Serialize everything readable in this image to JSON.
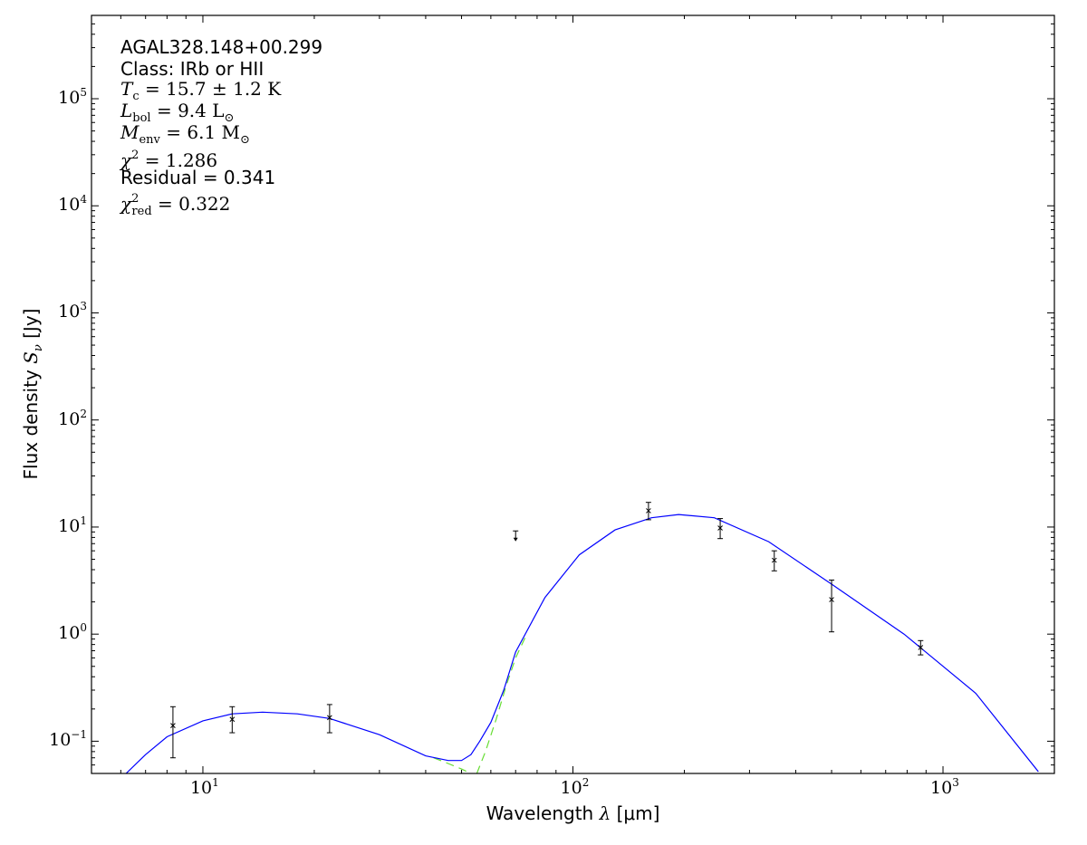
{
  "chart_data": {
    "type": "scatter",
    "xscale": "log",
    "yscale": "log",
    "xlim": [
      5,
      2000
    ],
    "ylim": [
      0.05,
      600000
    ],
    "xlabel": {
      "text": "Wavelength",
      "symbol": "λ",
      "unit": "[μm]"
    },
    "ylabel": {
      "text": "Flux density",
      "symbol": "S",
      "sub": "ν",
      "unit": "[Jy]"
    },
    "x_ticks": [
      {
        "base": "10",
        "exp": "1",
        "value": 10
      },
      {
        "base": "10",
        "exp": "2",
        "value": 100
      },
      {
        "base": "10",
        "exp": "3",
        "value": 1000
      }
    ],
    "y_ticks": [
      {
        "base": "10",
        "exp": "−1",
        "value": 0.1
      },
      {
        "base": "10",
        "exp": "0",
        "value": 1
      },
      {
        "base": "10",
        "exp": "1",
        "value": 10
      },
      {
        "base": "10",
        "exp": "2",
        "value": 100
      },
      {
        "base": "10",
        "exp": "3",
        "value": 1000
      },
      {
        "base": "10",
        "exp": "4",
        "value": 10000
      },
      {
        "base": "10",
        "exp": "5",
        "value": 100000
      }
    ],
    "grid": false,
    "colors": {
      "model_total": "#0000ff",
      "model_component": "#66dd33",
      "points": "#000000"
    },
    "annotations": {
      "source": "AGAL328.148+00.299",
      "class": "Class: IRb or HII",
      "tc": {
        "sym": "T",
        "sub": "c",
        "rest": " = 15.7 ± 1.2 K"
      },
      "lbol": {
        "sym": "L",
        "sub": "bol",
        "rest": " = 9.4 L",
        "tail": "⊙"
      },
      "menv": {
        "sym": "M",
        "sub": "env",
        "rest": " = 6.1 M",
        "tail": "⊙"
      },
      "chi2": {
        "sym": "χ",
        "sup": "2",
        "rest": " = 1.286"
      },
      "residual": "Residual = 0.341",
      "chi2red": {
        "sym": "χ",
        "sup": "2",
        "sub": "red",
        "rest": " = 0.322"
      }
    },
    "points": [
      {
        "x": 8.3,
        "y": 0.14,
        "ylo": 0.07,
        "yhi": 0.21
      },
      {
        "x": 12,
        "y": 0.16,
        "ylo": 0.12,
        "yhi": 0.21
      },
      {
        "x": 22,
        "y": 0.166,
        "ylo": 0.12,
        "yhi": 0.22
      },
      {
        "x": 70,
        "y": 8.1,
        "ylo": 7.5,
        "yhi": 9.2,
        "upper_limit": true
      },
      {
        "x": 160,
        "y": 14.2,
        "ylo": 11.7,
        "yhi": 17
      },
      {
        "x": 250,
        "y": 9.8,
        "ylo": 7.8,
        "yhi": 12
      },
      {
        "x": 350,
        "y": 4.9,
        "ylo": 3.9,
        "yhi": 6.0
      },
      {
        "x": 500,
        "y": 2.1,
        "ylo": 1.05,
        "yhi": 3.2
      },
      {
        "x": 870,
        "y": 0.75,
        "ylo": 0.64,
        "yhi": 0.87
      }
    ],
    "model_total": [
      [
        6.2,
        0.05
      ],
      [
        7,
        0.075
      ],
      [
        8,
        0.11
      ],
      [
        10,
        0.155
      ],
      [
        12,
        0.18
      ],
      [
        14.5,
        0.187
      ],
      [
        18,
        0.18
      ],
      [
        22,
        0.163
      ],
      [
        30,
        0.115
      ],
      [
        40,
        0.073
      ],
      [
        46,
        0.066
      ],
      [
        50,
        0.066
      ],
      [
        53,
        0.075
      ],
      [
        56,
        0.1
      ],
      [
        60,
        0.15
      ],
      [
        65,
        0.3
      ],
      [
        70,
        0.68
      ],
      [
        84,
        2.2
      ],
      [
        104,
        5.5
      ],
      [
        130,
        9.4
      ],
      [
        163,
        12.2
      ],
      [
        193,
        13.1
      ],
      [
        241,
        12.2
      ],
      [
        338,
        7.3
      ],
      [
        502,
        2.9
      ],
      [
        785,
        1.0
      ],
      [
        1226,
        0.28
      ],
      [
        1810,
        0.052
      ]
    ],
    "model_hot": [
      [
        42,
        0.07
      ],
      [
        46,
        0.062
      ],
      [
        50,
        0.055
      ],
      [
        53,
        0.05
      ]
    ],
    "model_cold": [
      [
        55,
        0.05
      ],
      [
        58,
        0.08
      ],
      [
        62,
        0.16
      ],
      [
        66,
        0.33
      ],
      [
        70,
        0.6
      ],
      [
        75,
        1.0
      ]
    ]
  }
}
